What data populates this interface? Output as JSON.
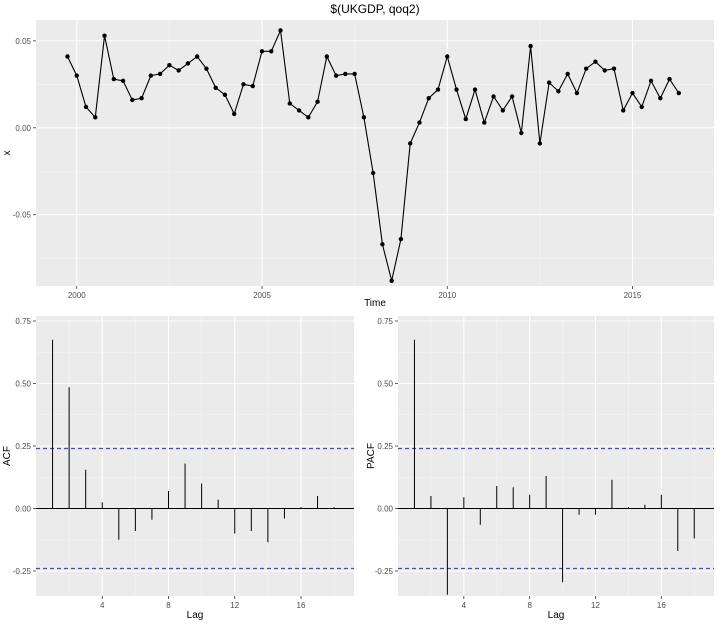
{
  "colors": {
    "panel_bg": "#ebebeb",
    "grid_major": "#ffffff",
    "grid_minor": "#f5f5f5",
    "series": "#000000",
    "ci_line": "#3f51b5",
    "tick_text": "#4d4d4d"
  },
  "chart_data": [
    {
      "type": "line",
      "title": "$(UKGDP, qoq2)",
      "xlabel": "Time",
      "ylabel": "x",
      "xlim": [
        1998.9,
        2017.2
      ],
      "ylim": [
        -0.091,
        0.062
      ],
      "x_ticks": [
        2000,
        2005,
        2010,
        2015
      ],
      "x_tick_labels": [
        "2000",
        "2005",
        "2010",
        "2015"
      ],
      "y_ticks": [
        0.05,
        0.0,
        -0.05
      ],
      "y_tick_labels": [
        "0.05",
        "0.00",
        "-0.05"
      ],
      "grid": true,
      "points": true,
      "x": [
        1999.75,
        2000.0,
        2000.25,
        2000.5,
        2000.75,
        2001.0,
        2001.25,
        2001.5,
        2001.75,
        2002.0,
        2002.25,
        2002.5,
        2002.75,
        2003.0,
        2003.25,
        2003.5,
        2003.75,
        2004.0,
        2004.25,
        2004.5,
        2004.75,
        2005.0,
        2005.25,
        2005.5,
        2005.75,
        2006.0,
        2006.25,
        2006.5,
        2006.75,
        2007.0,
        2007.25,
        2007.5,
        2007.75,
        2008.0,
        2008.25,
        2008.5,
        2008.75,
        2009.0,
        2009.25,
        2009.5,
        2009.75,
        2010.0,
        2010.25,
        2010.5,
        2010.75,
        2011.0,
        2011.25,
        2011.5,
        2011.75,
        2012.0,
        2012.25,
        2012.5,
        2012.75,
        2013.0,
        2013.25,
        2013.5,
        2013.75,
        2014.0,
        2014.25,
        2014.5,
        2014.75,
        2015.0,
        2015.25,
        2015.5,
        2015.75,
        2016.0,
        2016.25
      ],
      "y": [
        0.041,
        0.03,
        0.012,
        0.006,
        0.053,
        0.028,
        0.027,
        0.016,
        0.017,
        0.03,
        0.031,
        0.036,
        0.033,
        0.037,
        0.041,
        0.034,
        0.023,
        0.019,
        0.008,
        0.025,
        0.024,
        0.044,
        0.044,
        0.056,
        0.014,
        0.01,
        0.006,
        0.015,
        0.041,
        0.03,
        0.031,
        0.031,
        0.006,
        -0.026,
        -0.067,
        -0.088,
        -0.064,
        -0.009,
        0.003,
        0.017,
        0.022,
        0.041,
        0.022,
        0.005,
        0.022,
        0.003,
        0.018,
        0.01,
        0.018,
        -0.003,
        0.047,
        -0.009,
        0.026,
        0.021,
        0.031,
        0.02,
        0.034,
        0.038,
        0.033,
        0.034,
        0.01,
        0.02,
        0.012,
        0.027,
        0.017,
        0.028,
        0.02
      ]
    },
    {
      "type": "bar",
      "title": "",
      "xlabel": "Lag",
      "ylabel": "ACF",
      "xlim": [
        0.0,
        19.2
      ],
      "ylim": [
        -0.35,
        0.77
      ],
      "x_ticks": [
        4,
        8,
        12,
        16
      ],
      "x_tick_labels": [
        "4",
        "8",
        "12",
        "16"
      ],
      "y_ticks": [
        0.75,
        0.5,
        0.25,
        0.0,
        -0.25
      ],
      "y_tick_labels": [
        "0.75",
        "0.50",
        "0.25",
        "0.00",
        "-0.25"
      ],
      "grid": true,
      "confidence_bounds": [
        0.24,
        -0.24
      ],
      "lags": [
        1,
        2,
        3,
        4,
        5,
        6,
        7,
        8,
        9,
        10,
        11,
        12,
        13,
        14,
        15,
        16,
        17,
        18
      ],
      "values": [
        0.675,
        0.485,
        0.155,
        0.025,
        -0.125,
        -0.09,
        -0.045,
        0.07,
        0.18,
        0.1,
        0.035,
        -0.1,
        -0.09,
        -0.135,
        -0.04,
        0.005,
        0.05,
        0.005
      ]
    },
    {
      "type": "bar",
      "title": "",
      "xlabel": "Lag",
      "ylabel": "PACF",
      "xlim": [
        0.0,
        19.2
      ],
      "ylim": [
        -0.35,
        0.77
      ],
      "x_ticks": [
        4,
        8,
        12,
        16
      ],
      "x_tick_labels": [
        "4",
        "8",
        "12",
        "16"
      ],
      "y_ticks": [
        0.75,
        0.5,
        0.25,
        0.0,
        -0.25
      ],
      "y_tick_labels": [
        "0.75",
        "0.50",
        "0.25",
        "0.00",
        "-0.25"
      ],
      "grid": true,
      "confidence_bounds": [
        0.24,
        -0.24
      ],
      "lags": [
        1,
        2,
        3,
        4,
        5,
        6,
        7,
        8,
        9,
        10,
        11,
        12,
        13,
        14,
        15,
        16,
        17,
        18
      ],
      "values": [
        0.675,
        0.05,
        -0.345,
        0.045,
        -0.065,
        0.09,
        0.085,
        0.055,
        0.13,
        -0.295,
        -0.025,
        -0.025,
        0.115,
        0.005,
        0.015,
        0.055,
        -0.17,
        -0.12
      ]
    }
  ]
}
